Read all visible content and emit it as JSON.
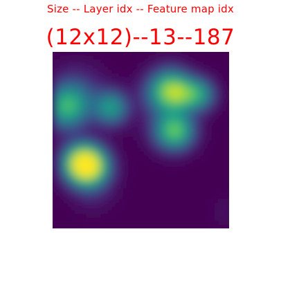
{
  "header": {
    "legend": "Size -- Layer idx -- Feature map idx",
    "values": "(12x12)--13--187"
  },
  "feature_map": {
    "rows": 12,
    "cols": 12,
    "colormap": "viridis",
    "background_color": "#440154",
    "activations": [
      [
        0.0,
        0.0,
        0.0,
        0.0,
        0.0,
        0.0,
        0.0,
        0.0,
        0.0,
        0.0,
        0.0,
        0.0
      ],
      [
        0.0,
        0.0,
        0.0,
        0.0,
        0.0,
        0.0,
        0.0,
        0.0,
        0.0,
        0.0,
        0.0,
        0.0
      ],
      [
        0.0,
        0.0,
        0.0,
        0.0,
        0.0,
        0.0,
        0.0,
        0.0,
        0.0,
        0.0,
        0.0,
        0.0
      ],
      [
        0.0,
        0.0,
        0.0,
        0.0,
        0.0,
        0.0,
        0.0,
        0.0,
        0.0,
        0.0,
        0.0,
        0.0
      ],
      [
        0.0,
        0.0,
        0.0,
        0.0,
        0.0,
        0.0,
        0.0,
        0.0,
        0.0,
        0.0,
        0.0,
        0.0
      ],
      [
        0.0,
        0.0,
        0.0,
        0.0,
        0.0,
        0.0,
        0.0,
        0.0,
        0.0,
        0.0,
        0.0,
        0.0
      ],
      [
        0.0,
        0.0,
        0.0,
        0.0,
        0.0,
        0.0,
        0.0,
        0.0,
        0.0,
        0.0,
        0.0,
        0.0
      ],
      [
        0.0,
        0.0,
        0.0,
        0.0,
        0.0,
        0.0,
        0.0,
        0.0,
        0.0,
        0.0,
        0.0,
        0.0
      ],
      [
        0.0,
        0.0,
        0.0,
        0.0,
        0.0,
        0.0,
        0.0,
        0.0,
        0.0,
        0.0,
        0.0,
        0.0
      ],
      [
        0.0,
        0.0,
        0.0,
        0.0,
        0.0,
        0.0,
        0.0,
        0.0,
        0.0,
        0.0,
        0.0,
        0.0
      ],
      [
        0.0,
        0.0,
        0.0,
        0.0,
        0.0,
        0.0,
        0.0,
        0.0,
        0.0,
        0.0,
        0.0,
        0.0
      ],
      [
        0.0,
        0.0,
        0.0,
        0.0,
        0.0,
        0.0,
        0.0,
        0.0,
        0.0,
        0.0,
        0.0,
        0.0
      ]
    ],
    "hotspots": [
      {
        "row": 7.1,
        "col": 1.5,
        "value": 1.0,
        "spread": 0.9
      },
      {
        "row": 7.3,
        "col": 2.3,
        "value": 0.45,
        "spread": 0.9
      },
      {
        "row": 3.3,
        "col": 0.45,
        "value": 0.6,
        "spread": 1.0
      },
      {
        "row": 3.3,
        "col": 3.5,
        "value": 0.55,
        "spread": 0.8
      },
      {
        "row": 2.2,
        "col": 1.2,
        "value": 0.2,
        "spread": 1.2
      },
      {
        "row": 2.4,
        "col": 7.0,
        "value": 0.45,
        "spread": 1.0
      },
      {
        "row": 2.4,
        "col": 8.2,
        "value": 0.4,
        "spread": 0.8
      },
      {
        "row": 1.7,
        "col": 7.6,
        "value": 0.3,
        "spread": 0.9
      },
      {
        "row": 2.4,
        "col": 9.5,
        "value": 0.5,
        "spread": 0.75
      },
      {
        "row": 4.9,
        "col": 8.0,
        "value": 0.58,
        "spread": 0.85
      },
      {
        "row": 4.9,
        "col": 7.2,
        "value": 0.25,
        "spread": 0.9
      },
      {
        "row": 8.8,
        "col": 2.2,
        "value": 0.12,
        "spread": 1.0
      },
      {
        "row": 10.3,
        "col": 11.3,
        "value": 0.05,
        "spread": 0.7
      }
    ]
  }
}
